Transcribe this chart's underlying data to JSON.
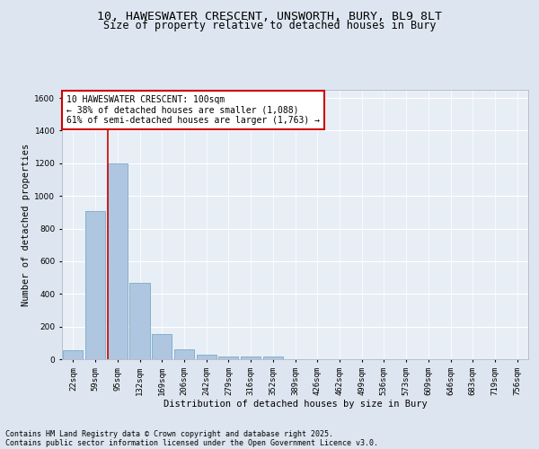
{
  "title_line1": "10, HAWESWATER CRESCENT, UNSWORTH, BURY, BL9 8LT",
  "title_line2": "Size of property relative to detached houses in Bury",
  "xlabel": "Distribution of detached houses by size in Bury",
  "ylabel": "Number of detached properties",
  "bar_labels": [
    "22sqm",
    "59sqm",
    "95sqm",
    "132sqm",
    "169sqm",
    "206sqm",
    "242sqm",
    "279sqm",
    "316sqm",
    "352sqm",
    "389sqm",
    "426sqm",
    "462sqm",
    "499sqm",
    "536sqm",
    "573sqm",
    "609sqm",
    "646sqm",
    "683sqm",
    "719sqm",
    "756sqm"
  ],
  "bar_values": [
    55,
    910,
    1200,
    470,
    155,
    62,
    27,
    18,
    15,
    15,
    0,
    0,
    0,
    0,
    0,
    0,
    0,
    0,
    0,
    0,
    0
  ],
  "bar_color": "#aec6df",
  "bar_edge_color": "#7aaac8",
  "annotation_text": "10 HAWESWATER CRESCENT: 100sqm\n← 38% of detached houses are smaller (1,088)\n61% of semi-detached houses are larger (1,763) →",
  "annotation_box_color": "#ffffff",
  "annotation_box_edge": "#cc0000",
  "red_line_color": "#cc0000",
  "ylim": [
    0,
    1650
  ],
  "yticks": [
    0,
    200,
    400,
    600,
    800,
    1000,
    1200,
    1400,
    1600
  ],
  "bg_color": "#dde6f0",
  "plot_bg_color": "#e8eef6",
  "grid_color": "#ffffff",
  "footer_line1": "Contains HM Land Registry data © Crown copyright and database right 2025.",
  "footer_line2": "Contains public sector information licensed under the Open Government Licence v3.0.",
  "title_fontsize": 9.5,
  "subtitle_fontsize": 8.5,
  "axis_label_fontsize": 7.5,
  "tick_fontsize": 6.5,
  "annotation_fontsize": 7,
  "footer_fontsize": 6
}
